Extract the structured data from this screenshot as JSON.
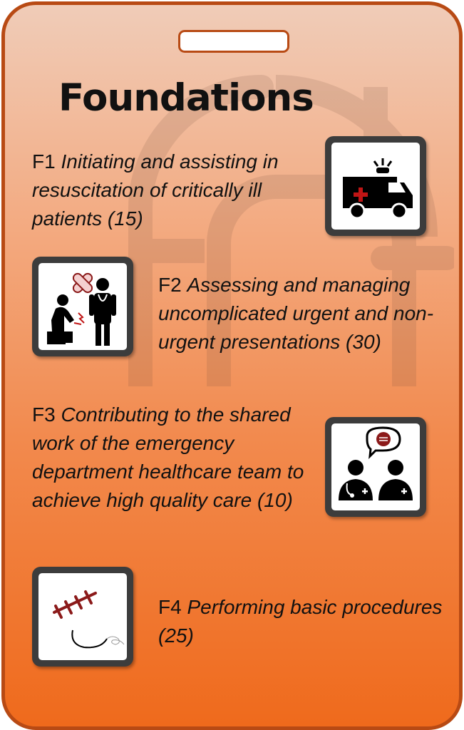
{
  "title": "Foundations",
  "items": [
    {
      "code": "F1",
      "text": "Initiating and assisting in resuscitation of critically ill patients (15)",
      "icon": "ambulance-icon"
    },
    {
      "code": "F2",
      "text": "Assessing and managing uncomplicated urgent and non-urgent presentations (30)",
      "icon": "patient-doctor-icon"
    },
    {
      "code": "F3",
      "text": "Contributing to the shared work of the emergency department healthcare team to achieve high quality care (10)",
      "icon": "team-discussion-icon"
    },
    {
      "code": "F4",
      "text": "Performing basic procedures (25)",
      "icon": "suture-icon"
    }
  ],
  "colors": {
    "border": "#b84a14",
    "gradient_top": "#f0ccb8",
    "gradient_bottom": "#ef6a1c",
    "accent_red": "#8b1a1a",
    "tile_frame": "#3c3c3c"
  }
}
